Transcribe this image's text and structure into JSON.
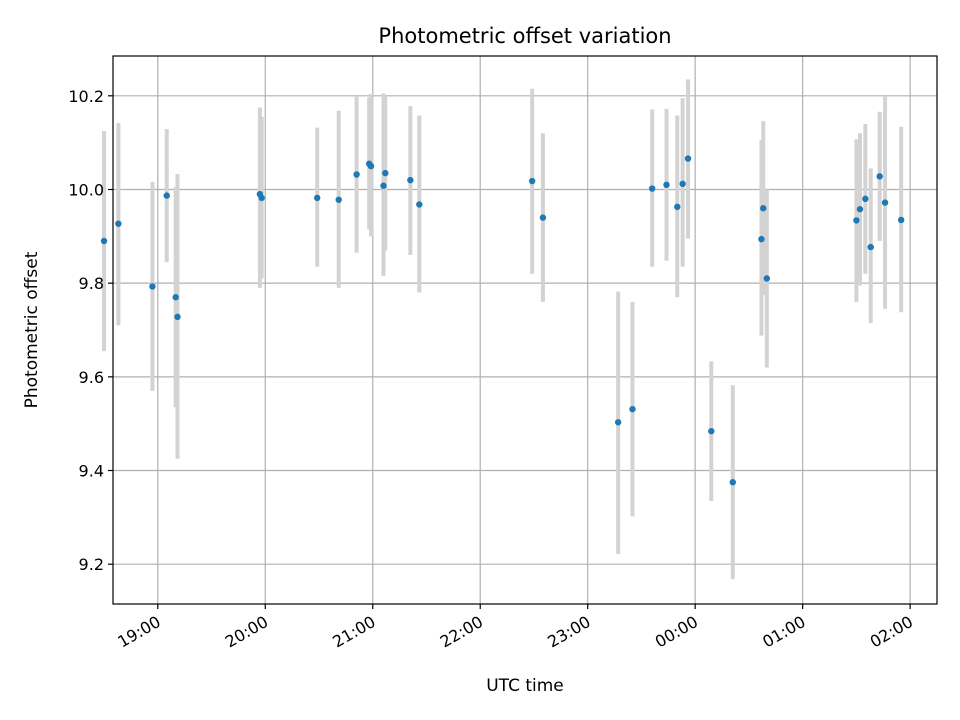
{
  "chart_data": {
    "type": "scatter",
    "title": "Photometric offset variation",
    "xlabel": "UTC time",
    "ylabel": "Photometric offset",
    "x_axis_type": "time",
    "xlim": [
      "18:35",
      "02:15"
    ],
    "xticks": [
      "19:00",
      "20:00",
      "21:00",
      "22:00",
      "23:00",
      "00:00",
      "01:00",
      "02:00"
    ],
    "ylim": [
      9.115,
      10.285
    ],
    "yticks": [
      "9.2",
      "9.4",
      "9.6",
      "9.8",
      "10.0",
      "10.2"
    ],
    "grid": true,
    "colors": {
      "point": "#1f77b4",
      "error_bar": "#d3d3d3"
    },
    "points": [
      {
        "t": "18:30",
        "y": 9.89,
        "lo": 9.655,
        "hi": 10.125
      },
      {
        "t": "18:38",
        "y": 9.927,
        "lo": 9.71,
        "hi": 10.142
      },
      {
        "t": "18:57",
        "y": 9.793,
        "lo": 9.57,
        "hi": 10.016
      },
      {
        "t": "19:05",
        "y": 9.987,
        "lo": 9.845,
        "hi": 10.129
      },
      {
        "t": "19:10",
        "y": 9.77,
        "lo": 9.535,
        "hi": 10.005
      },
      {
        "t": "19:11",
        "y": 9.728,
        "lo": 9.425,
        "hi": 10.033
      },
      {
        "t": "19:57",
        "y": 9.99,
        "lo": 9.79,
        "hi": 10.175
      },
      {
        "t": "19:58",
        "y": 9.982,
        "lo": 9.81,
        "hi": 10.155
      },
      {
        "t": "20:29",
        "y": 9.982,
        "lo": 9.835,
        "hi": 10.132
      },
      {
        "t": "20:41",
        "y": 9.978,
        "lo": 9.79,
        "hi": 10.168
      },
      {
        "t": "20:51",
        "y": 10.032,
        "lo": 9.865,
        "hi": 10.198
      },
      {
        "t": "20:58",
        "y": 10.055,
        "lo": 9.915,
        "hi": 10.196
      },
      {
        "t": "20:59",
        "y": 10.05,
        "lo": 9.9,
        "hi": 10.204
      },
      {
        "t": "21:06",
        "y": 10.008,
        "lo": 9.815,
        "hi": 10.205
      },
      {
        "t": "21:07",
        "y": 10.035,
        "lo": 9.87,
        "hi": 10.198
      },
      {
        "t": "21:21",
        "y": 10.02,
        "lo": 9.86,
        "hi": 10.178
      },
      {
        "t": "21:26",
        "y": 9.968,
        "lo": 9.78,
        "hi": 10.158
      },
      {
        "t": "22:29",
        "y": 10.018,
        "lo": 9.82,
        "hi": 10.215
      },
      {
        "t": "22:35",
        "y": 9.94,
        "lo": 9.76,
        "hi": 10.12
      },
      {
        "t": "23:17",
        "y": 9.503,
        "lo": 9.222,
        "hi": 9.782
      },
      {
        "t": "23:25",
        "y": 9.531,
        "lo": 9.302,
        "hi": 9.76
      },
      {
        "t": "23:36",
        "y": 10.002,
        "lo": 9.835,
        "hi": 10.171
      },
      {
        "t": "23:44",
        "y": 10.01,
        "lo": 9.848,
        "hi": 10.172
      },
      {
        "t": "23:50",
        "y": 9.963,
        "lo": 9.77,
        "hi": 10.158
      },
      {
        "t": "23:53",
        "y": 10.012,
        "lo": 9.835,
        "hi": 10.195
      },
      {
        "t": "23:56",
        "y": 10.066,
        "lo": 9.895,
        "hi": 10.235
      },
      {
        "t": "00:09",
        "y": 9.484,
        "lo": 9.335,
        "hi": 9.633
      },
      {
        "t": "00:21",
        "y": 9.375,
        "lo": 9.168,
        "hi": 9.582
      },
      {
        "t": "00:37",
        "y": 9.894,
        "lo": 9.688,
        "hi": 10.105
      },
      {
        "t": "00:38",
        "y": 9.96,
        "lo": 9.775,
        "hi": 10.146
      },
      {
        "t": "00:40",
        "y": 9.81,
        "lo": 9.62,
        "hi": 10.0
      },
      {
        "t": "01:30",
        "y": 9.934,
        "lo": 9.76,
        "hi": 10.107
      },
      {
        "t": "01:32",
        "y": 9.958,
        "lo": 9.795,
        "hi": 10.12
      },
      {
        "t": "01:35",
        "y": 9.98,
        "lo": 9.82,
        "hi": 10.14
      },
      {
        "t": "01:38",
        "y": 9.877,
        "lo": 9.715,
        "hi": 10.045
      },
      {
        "t": "01:43",
        "y": 10.028,
        "lo": 9.89,
        "hi": 10.166
      },
      {
        "t": "01:46",
        "y": 9.972,
        "lo": 9.745,
        "hi": 10.198
      },
      {
        "t": "01:55",
        "y": 9.935,
        "lo": 9.738,
        "hi": 10.134
      }
    ]
  }
}
